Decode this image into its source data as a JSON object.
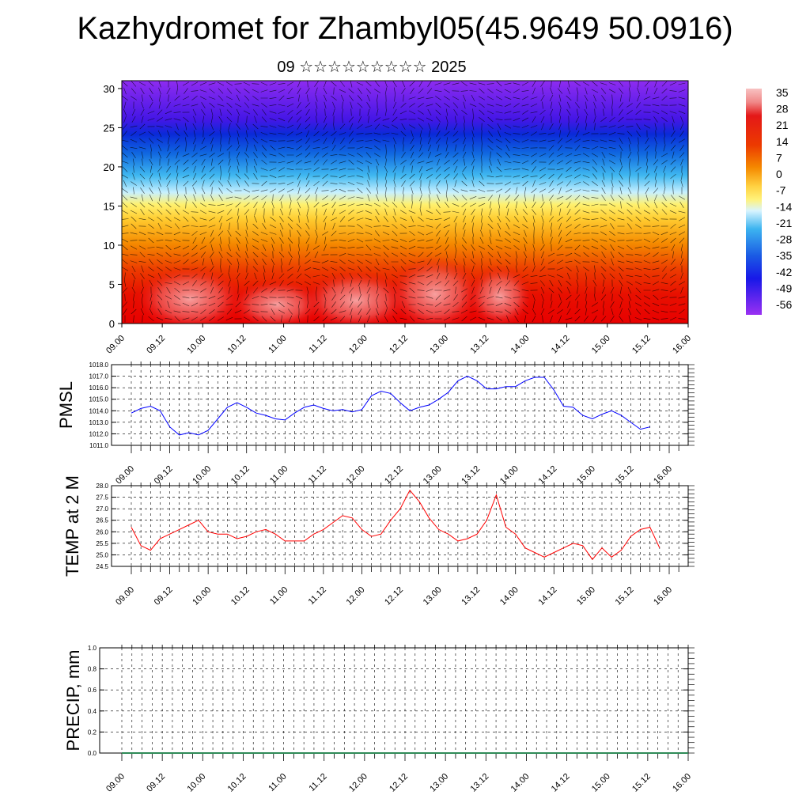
{
  "title": "Kazhydromet for Zhambyl05(45.9649 50.0916)",
  "subtitle": "09 ☆☆☆☆☆☆☆☆☆ 2025",
  "x_tick_labels": [
    "09.00",
    "09.12",
    "10.00",
    "10.12",
    "11.00",
    "11.12",
    "12.00",
    "12.12",
    "13.00",
    "13.12",
    "14.00",
    "14.12",
    "15.00",
    "15.12",
    "16.00"
  ],
  "chart_data": [
    {
      "type": "heatmap",
      "title": "",
      "xlabel": "",
      "ylabel": "",
      "ylim": [
        0,
        31
      ],
      "y_ticks": [
        0,
        5,
        10,
        15,
        20,
        25,
        30
      ],
      "x_ticks": [
        "09.00",
        "09.12",
        "10.00",
        "10.12",
        "11.00",
        "11.12",
        "12.00",
        "12.12",
        "13.00",
        "13.12",
        "14.00",
        "14.12",
        "15.00",
        "15.12",
        "16.00"
      ],
      "colorbar": {
        "labels": [
          35,
          28,
          21,
          14,
          7,
          0,
          -7,
          -14,
          -21,
          -28,
          -35,
          -42,
          -49,
          -56
        ],
        "range": [
          -60,
          37
        ]
      },
      "layers_temperature_approx": [
        {
          "y": 0,
          "value": 32
        },
        {
          "y": 5,
          "value": 28
        },
        {
          "y": 10,
          "value": 18
        },
        {
          "y": 15,
          "value": 0
        },
        {
          "y": 18,
          "value": -14
        },
        {
          "y": 21,
          "value": -30
        },
        {
          "y": 25,
          "value": -52
        },
        {
          "y": 31,
          "value": -56
        }
      ],
      "overlay": "wind vectors",
      "grid": false
    },
    {
      "type": "line",
      "ylabel": "PMSL",
      "ylim": [
        1011.0,
        1018.0
      ],
      "y_ticks": [
        "1011.0",
        "1012.0",
        "1013.0",
        "1014.0",
        "1015.0",
        "1016.0",
        "1017.0",
        "1018.0"
      ],
      "grid": true,
      "color": "#0000ff",
      "x_hours": [
        0,
        3,
        6,
        9,
        12,
        15,
        18,
        21,
        24,
        27,
        30,
        33,
        36,
        39,
        42,
        45,
        48,
        51,
        54,
        57,
        60,
        63,
        66,
        69,
        72,
        75,
        78,
        81,
        84,
        87,
        90,
        93,
        96,
        99,
        102,
        105,
        108,
        111,
        114,
        117,
        120,
        123,
        126,
        129,
        132,
        135,
        138,
        141,
        144,
        147,
        150,
        153,
        156,
        159,
        162
      ],
      "values": [
        1013.8,
        1014.2,
        1014.4,
        1014.0,
        1012.6,
        1011.9,
        1012.1,
        1011.9,
        1012.3,
        1013.3,
        1014.3,
        1014.7,
        1014.3,
        1013.8,
        1013.6,
        1013.3,
        1013.2,
        1013.8,
        1014.3,
        1014.5,
        1014.2,
        1014.0,
        1014.1,
        1013.9,
        1014.1,
        1015.3,
        1015.7,
        1015.5,
        1014.7,
        1014.0,
        1014.3,
        1014.5,
        1015.0,
        1015.6,
        1016.6,
        1017.0,
        1016.6,
        1015.9,
        1015.9,
        1016.1,
        1016.1,
        1016.6,
        1016.9,
        1016.9,
        1015.8,
        1014.4,
        1014.3,
        1013.6,
        1013.3,
        1013.7,
        1014.0,
        1013.6,
        1013.0,
        1012.4,
        1012.6
      ]
    },
    {
      "type": "line",
      "ylabel": "TEMP at 2 M",
      "ylim": [
        24.5,
        28.0
      ],
      "y_ticks": [
        "24.5",
        "25.0",
        "25.5",
        "26.0",
        "26.5",
        "27.0",
        "27.5",
        "28.0"
      ],
      "grid": true,
      "color": "#ff0000",
      "x_hours": [
        0,
        3,
        6,
        9,
        12,
        15,
        18,
        21,
        24,
        27,
        30,
        33,
        36,
        39,
        42,
        45,
        48,
        51,
        54,
        57,
        60,
        63,
        66,
        69,
        72,
        75,
        78,
        81,
        84,
        87,
        90,
        93,
        96,
        99,
        102,
        105,
        108,
        111,
        114,
        117,
        120,
        123,
        126,
        129,
        132,
        135,
        138,
        141,
        144,
        147,
        150,
        153,
        156,
        159,
        162,
        165
      ],
      "values": [
        26.2,
        25.4,
        25.2,
        25.7,
        25.9,
        26.1,
        26.3,
        26.5,
        26.0,
        25.9,
        25.9,
        25.7,
        25.8,
        26.0,
        26.1,
        25.9,
        25.6,
        25.6,
        25.6,
        25.9,
        26.1,
        26.4,
        26.7,
        26.6,
        26.1,
        25.8,
        25.9,
        26.5,
        27.0,
        27.8,
        27.3,
        26.6,
        26.1,
        25.9,
        25.6,
        25.7,
        25.9,
        26.5,
        27.6,
        26.2,
        25.9,
        25.3,
        25.1,
        24.9,
        25.1,
        25.3,
        25.5,
        25.4,
        24.8,
        25.3,
        24.9,
        25.2,
        25.8,
        26.1,
        26.2,
        25.3
      ]
    },
    {
      "type": "line",
      "ylabel": "PRECIP, mm",
      "ylim": [
        0.0,
        1.0
      ],
      "y_ticks": [
        "0.0",
        "0.2",
        "0.4",
        "0.6",
        "0.8",
        "1.0"
      ],
      "grid": true,
      "color": "#2e8b57",
      "x_hours": [
        0,
        168
      ],
      "values": [
        0.0,
        0.0
      ]
    }
  ]
}
